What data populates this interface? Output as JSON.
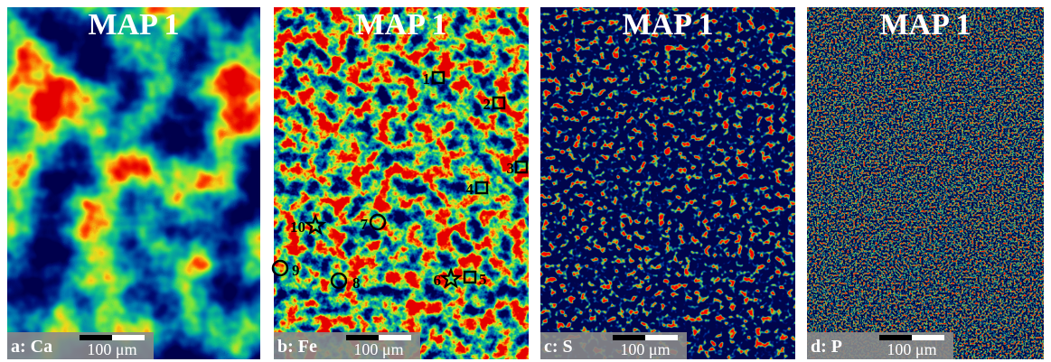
{
  "panels": [
    {
      "title": "MAP 1",
      "label": "a: Ca",
      "scale_bar": "100 μm"
    },
    {
      "title": "MAP 1",
      "label": "b: Fe",
      "scale_bar": "100 μm",
      "markers": [
        {
          "label": "1",
          "shape": "square"
        },
        {
          "label": "2",
          "shape": "square"
        },
        {
          "label": "3",
          "shape": "square"
        },
        {
          "label": "4",
          "shape": "square"
        },
        {
          "label": "5",
          "shape": "square"
        },
        {
          "label": "6",
          "shape": "star"
        },
        {
          "label": "7",
          "shape": "circle"
        },
        {
          "label": "8",
          "shape": "circle"
        },
        {
          "label": "9",
          "shape": "circle"
        },
        {
          "label": "10",
          "shape": "star"
        }
      ]
    },
    {
      "title": "MAP 1",
      "label": "c: S",
      "scale_bar": "100 μm"
    },
    {
      "title": "MAP 1",
      "label": "d: P",
      "scale_bar": "100 μm"
    }
  ]
}
